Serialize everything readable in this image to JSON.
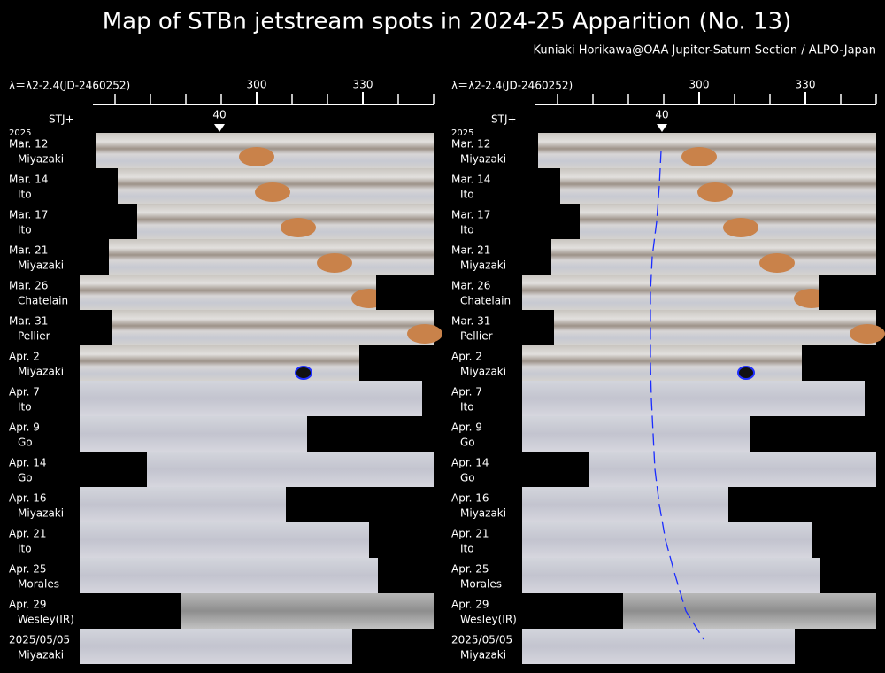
{
  "title": "Map of STBn jetstream spots in 2024-25 Apparition (No. 13)",
  "credit": "Kuniaki Horikawa@OAA Jupiter-Saturn Section / ALPO-Japan",
  "axis": {
    "label": "λ＝λ2-2.4(JD-2460252)",
    "ticks": [
      300,
      330
    ]
  },
  "marker": {
    "label": "STJ+",
    "value": "40"
  },
  "year": "2025",
  "rows": [
    {
      "date": "Mar. 12",
      "observer": "Miyazaki"
    },
    {
      "date": "Mar. 14",
      "observer": "Ito"
    },
    {
      "date": "Mar. 17",
      "observer": "Ito"
    },
    {
      "date": "Mar. 21",
      "observer": "Miyazaki"
    },
    {
      "date": "Mar. 26",
      "observer": "Chatelain"
    },
    {
      "date": "Mar. 31",
      "observer": "Pellier"
    },
    {
      "date": "Apr. 2",
      "observer": "Miyazaki"
    },
    {
      "date": "Apr. 7",
      "observer": "Ito"
    },
    {
      "date": "Apr. 9",
      "observer": "Go"
    },
    {
      "date": "Apr. 14",
      "observer": "Go"
    },
    {
      "date": "Apr. 16",
      "observer": "Miyazaki"
    },
    {
      "date": "Apr. 21",
      "observer": "Ito"
    },
    {
      "date": "Apr. 25",
      "observer": "Morales"
    },
    {
      "date": "Apr. 29",
      "observer": "Wesley(IR)"
    },
    {
      "date": "2025/05/05",
      "observer": "Miyazaki"
    }
  ]
}
